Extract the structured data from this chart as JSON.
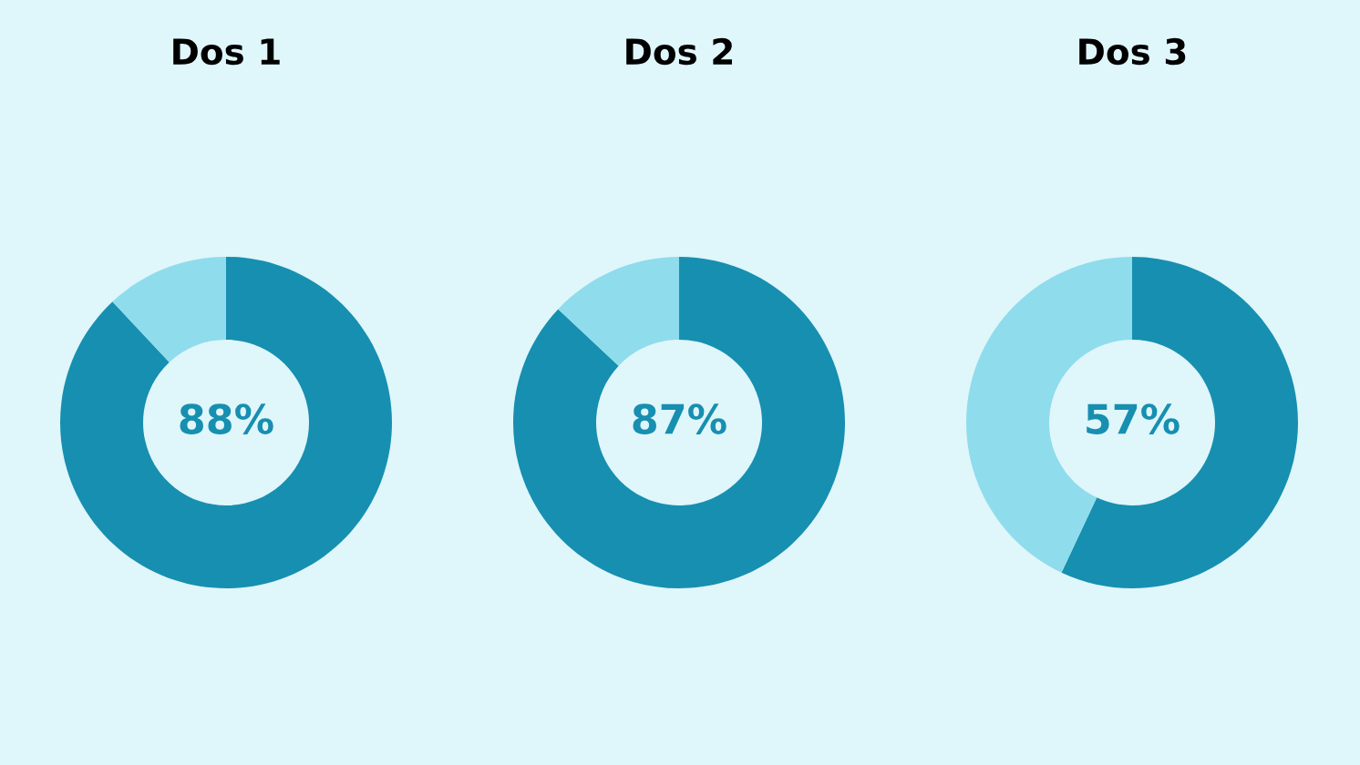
{
  "chart_data": [
    {
      "type": "donut",
      "title": "Dos 1",
      "categories": [
        null,
        null
      ],
      "values": [
        88,
        12
      ],
      "colors": [
        "#178fb0",
        "#8fdcec"
      ],
      "value_labels": [
        "88%",
        null
      ]
    },
    {
      "type": "donut",
      "title": "Dos 2",
      "categories": [
        null,
        null
      ],
      "values": [
        87,
        13
      ],
      "colors": [
        "#178fb0",
        "#8fdcec"
      ],
      "value_labels": [
        "87%",
        null
      ]
    },
    {
      "type": "donut",
      "title": "Dos 3",
      "categories": [
        null,
        null
      ],
      "values": [
        57,
        43
      ],
      "colors": [
        "#178fb0",
        "#8fdcec"
      ],
      "value_labels": [
        "57%",
        null
      ]
    }
  ]
}
